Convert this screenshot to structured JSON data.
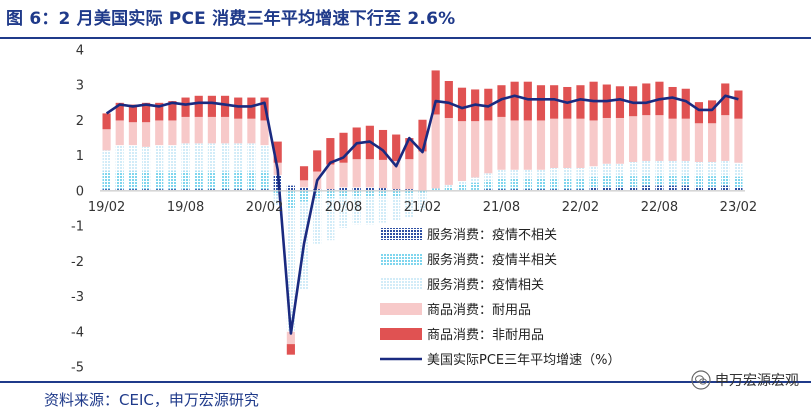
{
  "title": "图 6：2 月美国实际 PCE 消费三年平均增速下行至 2.6%",
  "source": "资料来源：CEIC，申万宏源研究",
  "watermark": "申万宏源宏观",
  "colors": {
    "services_unrelated": "#2e4fa3",
    "services_semi": "#7fd6ee",
    "services_related": "#d2ecf8",
    "durable": "#f7c9c9",
    "nondurable": "#e05252",
    "pce_line": "#1a2a80",
    "title": "#1f3a8a"
  },
  "chart_data": {
    "type": "bar",
    "stacked": true,
    "title": "",
    "xlabel": "",
    "ylabel": "",
    "ylim": [
      -5,
      4
    ],
    "yticks": [
      -5,
      -4,
      -3,
      -2,
      -1,
      0,
      1,
      2,
      3,
      4
    ],
    "xtick_labels": [
      "19/02",
      "19/08",
      "20/02",
      "20/08",
      "21/02",
      "21/08",
      "22/02",
      "22/08",
      "23/02"
    ],
    "xtick_index": [
      0,
      6,
      12,
      18,
      24,
      30,
      36,
      42,
      48
    ],
    "categories": [
      "19/02",
      "19/03",
      "19/04",
      "19/05",
      "19/06",
      "19/07",
      "19/08",
      "19/09",
      "19/10",
      "19/11",
      "19/12",
      "20/01",
      "20/02",
      "20/03",
      "20/04",
      "20/05",
      "20/06",
      "20/07",
      "20/08",
      "20/09",
      "20/10",
      "20/11",
      "20/12",
      "21/01",
      "21/02",
      "21/03",
      "21/04",
      "21/05",
      "21/06",
      "21/07",
      "21/08",
      "21/09",
      "21/10",
      "21/11",
      "21/12",
      "22/01",
      "22/02",
      "22/03",
      "22/04",
      "22/05",
      "22/06",
      "22/07",
      "22/08",
      "22/09",
      "22/10",
      "22/11",
      "22/12",
      "23/01",
      "23/02"
    ],
    "series": [
      {
        "name": "服务消费：疫情不相关",
        "key": "services_unrelated",
        "kind": "bar",
        "values": [
          0.05,
          0.05,
          0.05,
          0.05,
          0.05,
          0.05,
          0.05,
          0.05,
          0.05,
          0.05,
          0.05,
          0.05,
          0.05,
          0.45,
          0.15,
          0.1,
          0.05,
          0.05,
          0.1,
          0.1,
          0.1,
          0.08,
          0.05,
          0.05,
          0.02,
          0.02,
          0.02,
          0.03,
          0.03,
          0.05,
          0.05,
          0.05,
          0.05,
          0.05,
          0.05,
          0.05,
          0.05,
          0.1,
          0.12,
          0.12,
          0.12,
          0.15,
          0.15,
          0.15,
          0.15,
          0.12,
          0.12,
          0.15,
          0.1
        ]
      },
      {
        "name": "服务消费：疫情半相关",
        "key": "services_semi",
        "kind": "bar",
        "values": [
          0.5,
          0.5,
          0.5,
          0.5,
          0.5,
          0.5,
          0.5,
          0.5,
          0.5,
          0.5,
          0.5,
          0.5,
          0.5,
          -0.1,
          -0.5,
          -0.3,
          -0.2,
          -0.2,
          -0.15,
          -0.15,
          -0.15,
          -0.15,
          -0.15,
          -0.1,
          -0.05,
          0.05,
          0.1,
          0.15,
          0.2,
          0.25,
          0.3,
          0.3,
          0.3,
          0.3,
          0.3,
          0.3,
          0.3,
          0.3,
          0.3,
          0.3,
          0.3,
          0.3,
          0.3,
          0.3,
          0.3,
          0.3,
          0.3,
          0.3,
          0.3
        ]
      },
      {
        "name": "服务消费：疫情相关",
        "key": "services_related",
        "kind": "bar",
        "values": [
          0.6,
          0.75,
          0.75,
          0.7,
          0.75,
          0.75,
          0.8,
          0.8,
          0.8,
          0.8,
          0.8,
          0.8,
          0.75,
          -0.3,
          -3.5,
          -2.5,
          -1.3,
          -1.2,
          -0.9,
          -0.8,
          -0.8,
          -0.75,
          -0.7,
          -0.65,
          -0.5,
          0.0,
          0.05,
          0.1,
          0.15,
          0.2,
          0.25,
          0.25,
          0.25,
          0.25,
          0.3,
          0.3,
          0.3,
          0.3,
          0.35,
          0.35,
          0.4,
          0.4,
          0.4,
          0.4,
          0.4,
          0.4,
          0.4,
          0.4,
          0.4
        ]
      },
      {
        "name": "商品消费：耐用品",
        "key": "durable",
        "kind": "bar",
        "values": [
          0.6,
          0.7,
          0.65,
          0.7,
          0.7,
          0.7,
          0.75,
          0.75,
          0.75,
          0.75,
          0.7,
          0.7,
          0.7,
          0.35,
          -0.35,
          0.2,
          0.5,
          0.7,
          0.7,
          0.8,
          0.8,
          0.8,
          0.8,
          0.85,
          1.1,
          2.1,
          1.9,
          1.7,
          1.6,
          1.5,
          1.5,
          1.4,
          1.4,
          1.4,
          1.4,
          1.4,
          1.4,
          1.3,
          1.3,
          1.3,
          1.3,
          1.3,
          1.3,
          1.2,
          1.2,
          1.1,
          1.1,
          1.3,
          1.25
        ]
      },
      {
        "name": "商品消费：非耐用品",
        "key": "nondurable",
        "kind": "bar",
        "values": [
          0.45,
          0.5,
          0.5,
          0.55,
          0.5,
          0.55,
          0.55,
          0.6,
          0.6,
          0.6,
          0.6,
          0.6,
          0.65,
          0.6,
          -0.3,
          0.4,
          0.6,
          0.75,
          0.85,
          0.9,
          0.95,
          0.85,
          0.75,
          0.6,
          0.9,
          1.25,
          1.05,
          0.95,
          0.9,
          0.9,
          0.9,
          1.1,
          1.1,
          1.0,
          0.95,
          0.9,
          0.95,
          1.1,
          0.95,
          0.9,
          0.85,
          0.9,
          0.95,
          0.9,
          0.85,
          0.6,
          0.65,
          0.9,
          0.8
        ]
      },
      {
        "name": "美国实际PCE三年平均增速（%）",
        "key": "pce_line",
        "kind": "line",
        "values": [
          2.2,
          2.45,
          2.4,
          2.45,
          2.4,
          2.5,
          2.45,
          2.5,
          2.5,
          2.45,
          2.4,
          2.4,
          2.5,
          0.6,
          -4.05,
          -1.5,
          0.3,
          0.8,
          0.95,
          1.35,
          1.4,
          1.15,
          0.7,
          1.5,
          1.1,
          2.55,
          2.5,
          2.35,
          2.45,
          2.4,
          2.6,
          2.7,
          2.6,
          2.6,
          2.6,
          2.5,
          2.6,
          2.55,
          2.55,
          2.6,
          2.5,
          2.5,
          2.6,
          2.65,
          2.55,
          2.3,
          2.3,
          2.7,
          2.6
        ]
      }
    ]
  }
}
